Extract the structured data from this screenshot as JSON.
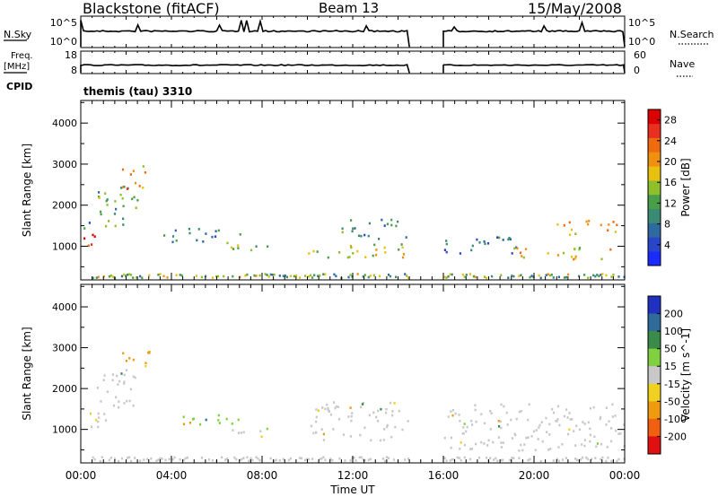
{
  "header": {
    "title": "Blackstone (fitACF)",
    "beam": "Beam 13",
    "date": "15/May/2008"
  },
  "aux_panels": {
    "nsky_label": "N.Sky",
    "nsky_ticks": [
      "10^5",
      "10^0"
    ],
    "nsearch_label": "N.Search",
    "nsearch_ticks": [
      "10^5",
      "10^0"
    ],
    "freq_label": "Freq.",
    "freq_unit": "[MHz]",
    "freq_ticks": [
      "18",
      "8"
    ],
    "nave_label": "Nave",
    "nave_ticks": [
      "60",
      "0"
    ],
    "cpid_label": "CPID",
    "cpid_value": "themis (tau) 3310"
  },
  "chart_data": [
    {
      "type": "heatmap",
      "title": "",
      "ylabel": "Slant Range [km]",
      "xlabel": "",
      "xlim": [
        "00:00",
        "24:00"
      ],
      "ylim": [
        180,
        4550
      ],
      "yticks": [
        1000,
        2000,
        3000,
        4000
      ],
      "colorbar": {
        "label": "Power [dB]",
        "ticks": [
          4,
          8,
          12,
          16,
          20,
          24,
          28
        ],
        "range": [
          0,
          30
        ],
        "colors": [
          "#1a2bff",
          "#2a46c8",
          "#2e6aa0",
          "#3a8a74",
          "#4a9e4a",
          "#8fbf2a",
          "#e8c010",
          "#f09010",
          "#f06a10",
          "#e83020",
          "#dd0000"
        ]
      },
      "data_gap": [
        "14:30",
        "16:00"
      ],
      "echo_regions": [
        {
          "t": [
            0.0,
            1.0
          ],
          "r": [
            1000,
            1350
          ],
          "power_db": 26
        },
        {
          "t": [
            0.0,
            1.2
          ],
          "r": [
            1400,
            1600
          ],
          "power_db": 10
        },
        {
          "t": [
            0.7,
            2.5
          ],
          "r": [
            1500,
            2500
          ],
          "power_db": 12
        },
        {
          "t": [
            1.8,
            3.0
          ],
          "r": [
            2400,
            3000
          ],
          "power_db": 20
        },
        {
          "t": [
            3.6,
            7.0
          ],
          "r": [
            1100,
            1450
          ],
          "power_db": 10
        },
        {
          "t": [
            6.0,
            8.5
          ],
          "r": [
            850,
            1050
          ],
          "power_db": 14
        },
        {
          "t": [
            10.0,
            14.5
          ],
          "r": [
            750,
            1100
          ],
          "power_db": 16
        },
        {
          "t": [
            11.5,
            14.5
          ],
          "r": [
            1200,
            1700
          ],
          "power_db": 10
        },
        {
          "t": [
            16.0,
            19.5
          ],
          "r": [
            850,
            1250
          ],
          "power_db": 8
        },
        {
          "t": [
            19.0,
            23.5
          ],
          "r": [
            700,
            1000
          ],
          "power_db": 18
        },
        {
          "t": [
            21.0,
            24.0
          ],
          "r": [
            1300,
            1650
          ],
          "power_db": 20
        }
      ]
    },
    {
      "type": "heatmap",
      "title": "",
      "ylabel": "Slant Range [km]",
      "xlabel": "Time UT",
      "xlim": [
        "00:00",
        "24:00"
      ],
      "xticks": [
        "00:00",
        "04:00",
        "08:00",
        "12:00",
        "16:00",
        "20:00",
        "00:00"
      ],
      "ylim": [
        180,
        4550
      ],
      "yticks": [
        1000,
        2000,
        3000,
        4000
      ],
      "colorbar": {
        "label": "Velocity [m s^-1]",
        "ticks": [
          200,
          100,
          50,
          15,
          -15,
          -50,
          -100,
          -200
        ],
        "colors": [
          "#2030c0",
          "#2e6a9a",
          "#3a8a4a",
          "#80d040",
          "#c8c8c8",
          "#f0d020",
          "#f09a10",
          "#f06010",
          "#e01010"
        ]
      },
      "data_gap": [
        "14:30",
        "16:00"
      ],
      "echo_regions": [
        {
          "t": [
            0.0,
            1.2
          ],
          "r": [
            1000,
            1500
          ],
          "velocity": 0
        },
        {
          "t": [
            0.7,
            2.5
          ],
          "r": [
            1500,
            2500
          ],
          "velocity": 0
        },
        {
          "t": [
            1.8,
            3.0
          ],
          "r": [
            2500,
            3000
          ],
          "velocity": -60
        },
        {
          "t": [
            3.6,
            5.0
          ],
          "r": [
            1100,
            1200
          ],
          "velocity": -60
        },
        {
          "t": [
            4.5,
            7.0
          ],
          "r": [
            1150,
            1450
          ],
          "velocity": 30
        },
        {
          "t": [
            6.0,
            8.5
          ],
          "r": [
            850,
            1050
          ],
          "velocity": 0
        },
        {
          "t": [
            10.0,
            14.5
          ],
          "r": [
            750,
            1700
          ],
          "velocity": 0
        },
        {
          "t": [
            16.0,
            24.0
          ],
          "r": [
            500,
            1650
          ],
          "velocity": 0
        }
      ]
    }
  ]
}
